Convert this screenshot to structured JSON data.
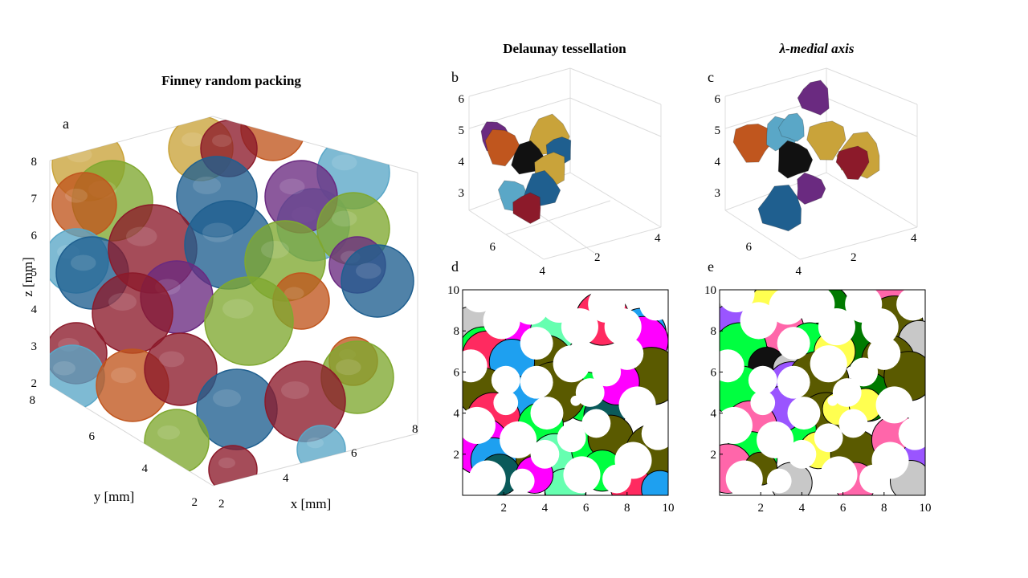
{
  "panel_a": {
    "title": "Finney random packing",
    "letter": "a",
    "x_label": "x [mm]",
    "y_label": "y [mm]",
    "z_label": "z [mm]",
    "x_ticks": [
      "2",
      "4",
      "6",
      "8"
    ],
    "y_ticks": [
      "8",
      "6",
      "4",
      "2"
    ],
    "z_ticks": [
      "8",
      "7",
      "6",
      "5",
      "4",
      "3",
      "2"
    ]
  },
  "panel_b": {
    "title": "Delaunay tessellation",
    "letter": "b",
    "z_ticks": [
      "6",
      "5",
      "4",
      "3"
    ],
    "y_ticks": [
      "6",
      "4"
    ],
    "x_ticks": [
      "2",
      "4"
    ]
  },
  "panel_c": {
    "title": "λ-medial axis",
    "letter": "c",
    "z_ticks": [
      "6",
      "5",
      "4",
      "3"
    ],
    "y_ticks": [
      "6",
      "4"
    ],
    "x_ticks": [
      "2",
      "4"
    ]
  },
  "panel_d": {
    "letter": "d",
    "x_ticks": [
      "2",
      "4",
      "6",
      "8",
      "10"
    ],
    "y_ticks": [
      "10",
      "8",
      "6",
      "4",
      "2"
    ]
  },
  "panel_e": {
    "letter": "e",
    "x_ticks": [
      "2",
      "4",
      "6",
      "8",
      "10"
    ],
    "y_ticks": [
      "10",
      "8",
      "6",
      "4",
      "2"
    ]
  },
  "colors": {
    "blue": "#1f5f8f",
    "light_blue": "#5aa7c7",
    "green": "#7fa830",
    "olive": "#5a5a00",
    "red": "#8c1a2a",
    "purple": "#6a2a80",
    "orange": "#c0561e",
    "gold": "#c9a33a",
    "black": "#111111",
    "magenta": "#ff00ff",
    "bright_green": "#00ff40",
    "pink_red": "#ff2a60",
    "sky": "#1ea0f0",
    "mint": "#66ffb0",
    "teal": "#0a5a5a",
    "gray": "#c8c8c8",
    "violet": "#9a55ff",
    "pink": "#ff66aa",
    "yellow": "#ffff50",
    "dark_green": "#007a00"
  }
}
